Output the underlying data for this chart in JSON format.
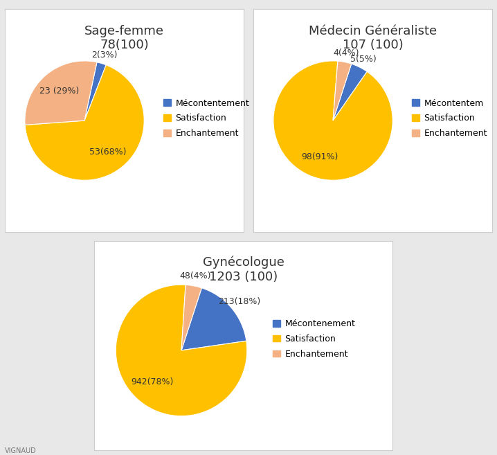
{
  "charts": [
    {
      "title": "Sage-femme\n78(100)",
      "values": [
        2,
        53,
        23
      ],
      "labels": [
        "2(3%)",
        "53(68%)",
        "23 (29%)"
      ],
      "label_offsets": [
        1.15,
        0.65,
        0.65
      ],
      "colors": [
        "#4472C4",
        "#FFC000",
        "#F4B183"
      ],
      "legend_labels": [
        "Mécontentement",
        "Satisfaction",
        "Enchantement"
      ],
      "startangle": 78
    },
    {
      "title": "Médecin Généraliste\n107 (100)",
      "values": [
        5,
        98,
        4
      ],
      "labels": [
        "5(5%)",
        "98(91%)",
        "4(4%)"
      ],
      "label_offsets": [
        1.15,
        0.65,
        1.15
      ],
      "colors": [
        "#4472C4",
        "#FFC000",
        "#F4B183"
      ],
      "legend_labels": [
        "Mécontentem",
        "Satisfaction",
        "Enchantement"
      ],
      "startangle": 72
    },
    {
      "title": "Gynécologue\n1203 (100)",
      "values": [
        213,
        942,
        48
      ],
      "labels": [
        "213(18%)",
        "942(78%)",
        "48(4%)"
      ],
      "label_offsets": [
        1.15,
        0.65,
        1.15
      ],
      "colors": [
        "#4472C4",
        "#FFC000",
        "#F4B183"
      ],
      "legend_labels": [
        "Mécontenement",
        "Satisfaction",
        "Enchantement"
      ],
      "startangle": 72
    }
  ],
  "bg_color": "#e8e8e8",
  "box_color": "#ffffff",
  "label_fontsize": 9,
  "title_fontsize": 13,
  "legend_fontsize": 9,
  "footer": "VIGNAUD"
}
